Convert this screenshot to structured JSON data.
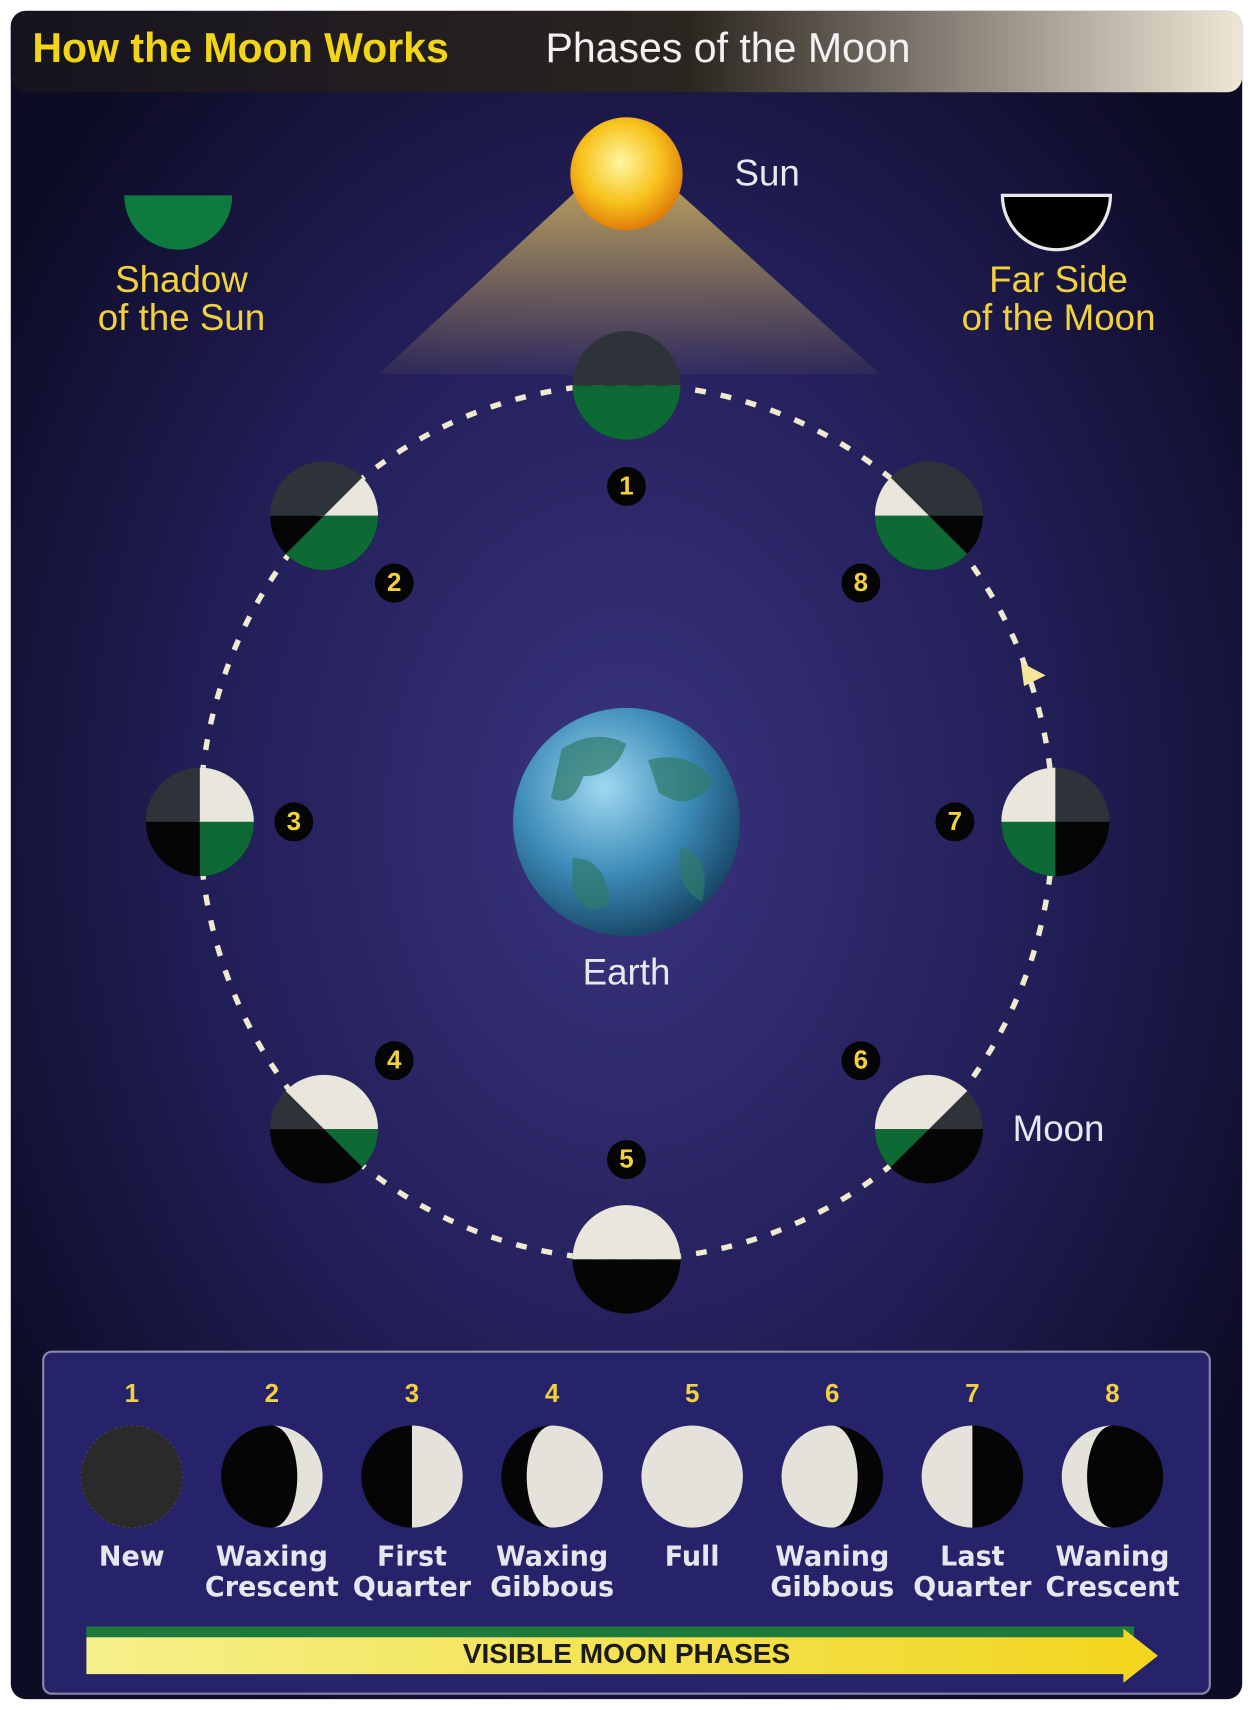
{
  "header": {
    "title": "How the Moon Works",
    "subtitle": "Phases of the Moon"
  },
  "labels": {
    "sun": "Sun",
    "earth": "Earth",
    "moon": "Moon",
    "shadow": [
      "Shadow",
      "of the Sun"
    ],
    "far_side": [
      "Far Side",
      "of the Moon"
    ]
  },
  "orbit_positions": [
    "1",
    "2",
    "3",
    "4",
    "5",
    "6",
    "7",
    "8"
  ],
  "phases": [
    {
      "number": "1",
      "name": [
        "New"
      ]
    },
    {
      "number": "2",
      "name": [
        "Waxing",
        "Crescent"
      ]
    },
    {
      "number": "3",
      "name": [
        "First",
        "Quarter"
      ]
    },
    {
      "number": "4",
      "name": [
        "Waxing",
        "Gibbous"
      ]
    },
    {
      "number": "5",
      "name": [
        "Full"
      ]
    },
    {
      "number": "6",
      "name": [
        "Waning",
        "Gibbous"
      ]
    },
    {
      "number": "7",
      "name": [
        "Last",
        "Quarter"
      ]
    },
    {
      "number": "8",
      "name": [
        "Waning",
        "Crescent"
      ]
    }
  ],
  "banner": "VISIBLE MOON PHASES"
}
